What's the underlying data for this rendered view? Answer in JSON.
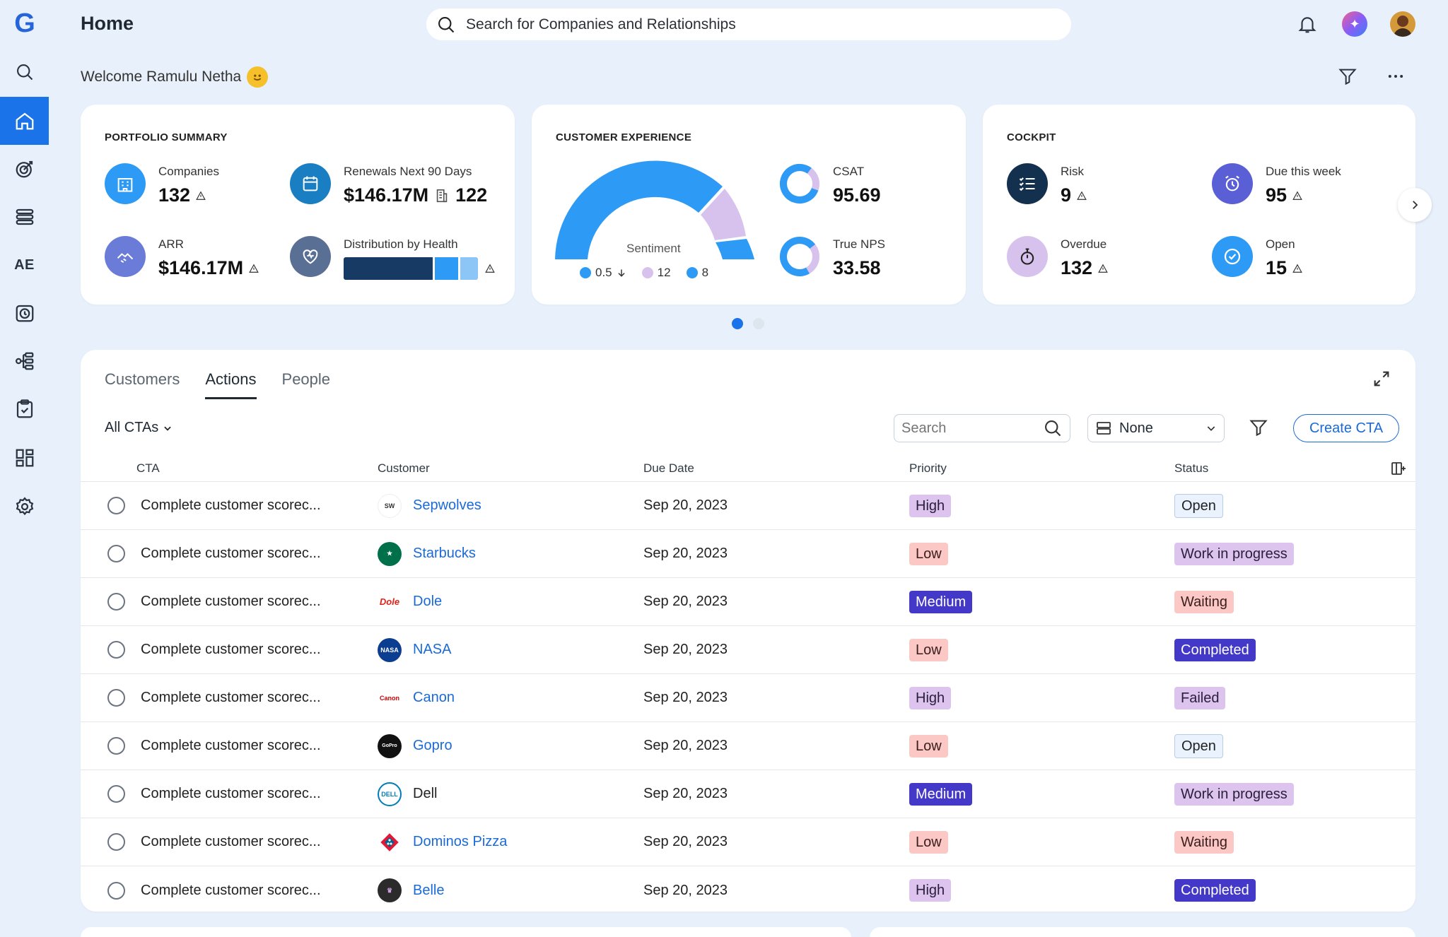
{
  "header": {
    "title": "Home",
    "search_placeholder": "Search for Companies and Relationships"
  },
  "welcome": {
    "text": "Welcome Ramulu Netha"
  },
  "sidebar": {
    "ae_label": "AE"
  },
  "portfolio": {
    "title": "PORTFOLIO SUMMARY",
    "companies_label": "Companies",
    "companies_value": "132",
    "renewals_label": "Renewals Next 90 Days",
    "renewals_value": "$146.17M",
    "renewals_count": "122",
    "arr_label": "ARR",
    "arr_value": "$146.17M",
    "health_label": "Distribution by Health"
  },
  "cx": {
    "title": "CUSTOMER EXPERIENCE",
    "sentiment_label": "Sentiment",
    "legend": [
      {
        "value": "0.5",
        "color": "#2d9bf5"
      },
      {
        "value": "12",
        "color": "#d7c2ee"
      },
      {
        "value": "8",
        "color": "#2d9bf5"
      }
    ],
    "csat_label": "CSAT",
    "csat_value": "95.69",
    "nps_label": "True NPS",
    "nps_value": "33.58"
  },
  "cockpit": {
    "title": "COCKPIT",
    "risk_label": "Risk",
    "risk_value": "9",
    "due_label": "Due this week",
    "due_value": "95",
    "overdue_label": "Overdue",
    "overdue_value": "132",
    "open_label": "Open",
    "open_value": "15"
  },
  "tabs": [
    {
      "label": "Customers"
    },
    {
      "label": "Actions"
    },
    {
      "label": "People"
    }
  ],
  "filter": {
    "label": "All CTAs"
  },
  "toolbar": {
    "search_placeholder": "Search",
    "group_value": "None",
    "create_label": "Create CTA"
  },
  "columns": {
    "cta": "CTA",
    "customer": "Customer",
    "due": "Due Date",
    "priority": "Priority",
    "status": "Status"
  },
  "rows": [
    {
      "cta": "Complete customer scorec...",
      "customer": "Sepwolves",
      "due": "Sep 20, 2023",
      "priority": "High",
      "status": "Open"
    },
    {
      "cta": "Complete customer scorec...",
      "customer": "Starbucks",
      "due": "Sep 20, 2023",
      "priority": "Low",
      "status": "Work in progress"
    },
    {
      "cta": "Complete customer scorec...",
      "customer": "Dole",
      "due": "Sep 20, 2023",
      "priority": "Medium",
      "status": "Waiting"
    },
    {
      "cta": "Complete customer scorec...",
      "customer": "NASA",
      "due": "Sep 20, 2023",
      "priority": "Low",
      "status": "Completed"
    },
    {
      "cta": "Complete customer scorec...",
      "customer": "Canon",
      "due": "Sep 20, 2023",
      "priority": "High",
      "status": "Failed"
    },
    {
      "cta": "Complete customer scorec...",
      "customer": "Gopro",
      "due": "Sep 20, 2023",
      "priority": "Low",
      "status": "Open"
    },
    {
      "cta": "Complete customer scorec...",
      "customer": "Dell",
      "due": "Sep 20, 2023",
      "priority": "Medium",
      "status": "Work in progress"
    },
    {
      "cta": "Complete customer scorec...",
      "customer": "Dominos Pizza",
      "due": "Sep 20, 2023",
      "priority": "Low",
      "status": "Waiting"
    },
    {
      "cta": "Complete customer scorec...",
      "customer": "Belle",
      "due": "Sep 20, 2023",
      "priority": "High",
      "status": "Completed"
    }
  ]
}
